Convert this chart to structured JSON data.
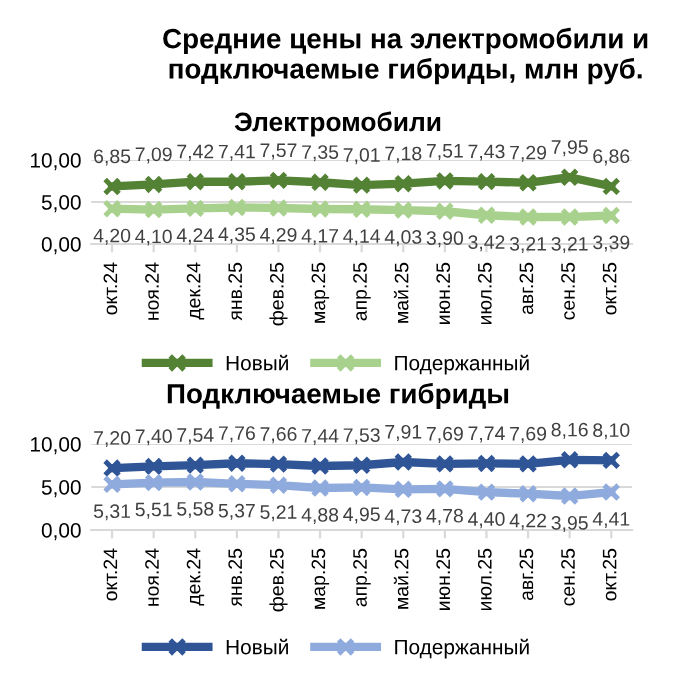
{
  "chart_data": [
    {
      "type": "line",
      "title": "Средние цены на электромобили и подключаемые гибриды, млн руб.",
      "subtitle": "Электромобили",
      "categories": [
        "окт.24",
        "ноя.24",
        "дек.24",
        "янв.25",
        "фев.25",
        "мар.25",
        "апр.25",
        "май.25",
        "июн.25",
        "июл.25",
        "авг.25",
        "сен.25",
        "окт.25"
      ],
      "series": [
        {
          "name": "Новый",
          "color": "#548235",
          "values": [
            6.85,
            7.09,
            7.42,
            7.41,
            7.57,
            7.35,
            7.01,
            7.18,
            7.51,
            7.43,
            7.29,
            7.95,
            6.86
          ],
          "value_labels": [
            "6,85",
            "7,09",
            "7,42",
            "7,41",
            "7,57",
            "7,35",
            "7,01",
            "7,18",
            "7,51",
            "7,43",
            "7,29",
            "7,95",
            "6,86"
          ]
        },
        {
          "name": "Подержанный",
          "color": "#a9d18e",
          "values": [
            4.2,
            4.1,
            4.24,
            4.35,
            4.29,
            4.17,
            4.14,
            4.03,
            3.9,
            3.42,
            3.21,
            3.21,
            3.39
          ],
          "value_labels": [
            "4,20",
            "4,10",
            "4,24",
            "4,35",
            "4,29",
            "4,17",
            "4,14",
            "4,03",
            "3,90",
            "3,42",
            "3,21",
            "3,21",
            "3,39"
          ]
        }
      ],
      "ylim": [
        0,
        10
      ],
      "yticks": [
        {
          "value": 0,
          "label": "0,00"
        },
        {
          "value": 5,
          "label": "5,00"
        },
        {
          "value": 10,
          "label": "10,00"
        }
      ],
      "grid": "y",
      "legend": "bottom",
      "marker": "cross",
      "line_style": "solid"
    },
    {
      "type": "line",
      "title": "Подключаемые гибриды",
      "categories": [
        "окт.24",
        "ноя.24",
        "дек.24",
        "янв.25",
        "фев.25",
        "мар.25",
        "апр.25",
        "май.25",
        "июн.25",
        "июл.25",
        "авг.25",
        "сен.25",
        "окт.25"
      ],
      "series": [
        {
          "name": "Новый",
          "color": "#2f5597",
          "values": [
            7.2,
            7.4,
            7.54,
            7.76,
            7.66,
            7.44,
            7.53,
            7.91,
            7.69,
            7.74,
            7.69,
            8.16,
            8.1
          ],
          "value_labels": [
            "7,20",
            "7,40",
            "7,54",
            "7,76",
            "7,66",
            "7,44",
            "7,53",
            "7,91",
            "7,69",
            "7,74",
            "7,69",
            "8,16",
            "8,10"
          ]
        },
        {
          "name": "Подержанный",
          "color": "#8faadc",
          "values": [
            5.31,
            5.51,
            5.58,
            5.37,
            5.21,
            4.88,
            4.95,
            4.73,
            4.78,
            4.4,
            4.22,
            3.95,
            4.41
          ],
          "value_labels": [
            "5,31",
            "5,51",
            "5,58",
            "5,37",
            "5,21",
            "4,88",
            "4,95",
            "4,73",
            "4,78",
            "4,40",
            "4,22",
            "3,95",
            "4,41"
          ]
        }
      ],
      "ylim": [
        0,
        10
      ],
      "yticks": [
        {
          "value": 0,
          "label": "0,00"
        },
        {
          "value": 5,
          "label": "5,00"
        },
        {
          "value": 10,
          "label": "10,00"
        }
      ],
      "grid": "y",
      "legend": "bottom",
      "marker": "cross",
      "line_style": "solid"
    }
  ]
}
